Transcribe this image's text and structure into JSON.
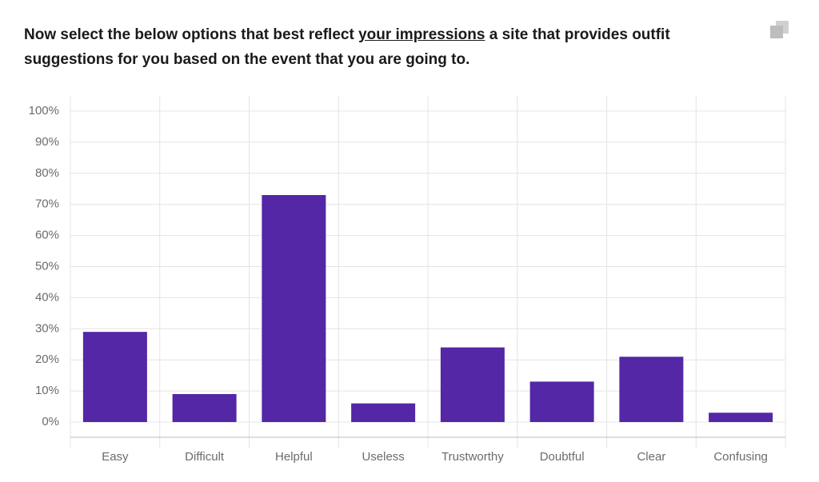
{
  "chart_data": {
    "type": "bar",
    "title": [
      "Now select the below options that best reflect ",
      "your impressions",
      " a site that provides outfit suggestions for you based on the event that you are going to."
    ],
    "categories": [
      "Easy",
      "Difficult",
      "Helpful",
      "Useless",
      "Trustworthy",
      "Doubtful",
      "Clear",
      "Confusing"
    ],
    "values": [
      29,
      9,
      73,
      6,
      24,
      13,
      21,
      3
    ],
    "color": "#5327a6",
    "ylim": [
      0,
      100
    ],
    "yticks": [
      {
        "value": 0,
        "label": "0%"
      },
      {
        "value": 10,
        "label": "10%"
      },
      {
        "value": 20,
        "label": "20%"
      },
      {
        "value": 30,
        "label": "30%"
      },
      {
        "value": 40,
        "label": "40%"
      },
      {
        "value": 50,
        "label": "50%"
      },
      {
        "value": 60,
        "label": "60%"
      },
      {
        "value": 70,
        "label": "70%"
      },
      {
        "value": 80,
        "label": "80%"
      },
      {
        "value": 90,
        "label": "90%"
      },
      {
        "value": 100,
        "label": "100%"
      }
    ],
    "grid": true
  }
}
